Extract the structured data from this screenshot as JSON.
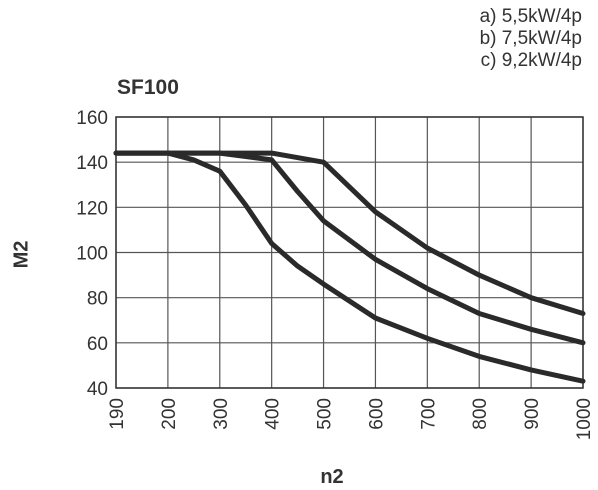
{
  "chart_data": {
    "type": "line",
    "title": "SF100",
    "xlabel": "n2",
    "ylabel": "M2",
    "legend": [
      "a) 5,5kW/4p",
      "b) 7,5kW/4p",
      "c) 9,2kW/4p"
    ],
    "legend_position": "top-right",
    "grid": true,
    "x_ticks": [
      "190",
      "200",
      "300",
      "400",
      "500",
      "600",
      "700",
      "800",
      "900",
      "1000"
    ],
    "ylim": [
      40,
      160
    ],
    "y_ticks": [
      40,
      60,
      80,
      100,
      120,
      140,
      160
    ],
    "series": [
      {
        "name": "a) 5,5kW/4p",
        "points": [
          [
            190,
            144
          ],
          [
            200,
            144
          ],
          [
            250,
            141
          ],
          [
            300,
            136
          ],
          [
            350,
            121
          ],
          [
            400,
            104
          ],
          [
            450,
            94
          ],
          [
            500,
            86
          ],
          [
            600,
            71
          ],
          [
            700,
            62
          ],
          [
            800,
            54
          ],
          [
            900,
            48
          ],
          [
            1000,
            43
          ]
        ]
      },
      {
        "name": "b) 7,5kW/4p",
        "points": [
          [
            190,
            144
          ],
          [
            200,
            144
          ],
          [
            300,
            144
          ],
          [
            400,
            141
          ],
          [
            450,
            127
          ],
          [
            500,
            114
          ],
          [
            600,
            97
          ],
          [
            700,
            84
          ],
          [
            800,
            73
          ],
          [
            900,
            66
          ],
          [
            1000,
            60
          ]
        ]
      },
      {
        "name": "c) 9,2kW/4p",
        "points": [
          [
            190,
            144
          ],
          [
            200,
            144
          ],
          [
            300,
            144
          ],
          [
            400,
            144
          ],
          [
            500,
            140
          ],
          [
            600,
            118
          ],
          [
            700,
            102
          ],
          [
            800,
            90
          ],
          [
            900,
            80
          ],
          [
            1000,
            73
          ]
        ]
      }
    ]
  }
}
